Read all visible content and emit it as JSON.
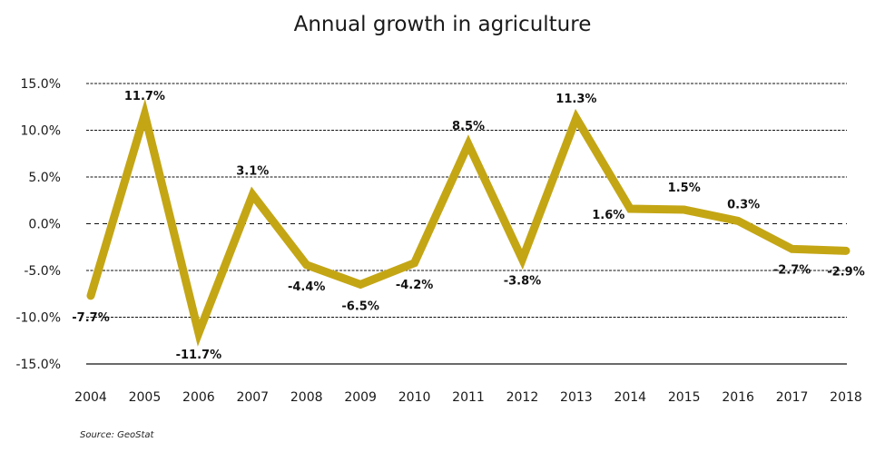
{
  "chart_data": {
    "type": "line",
    "title": "Annual growth in agriculture",
    "xlabel": "",
    "ylabel": "",
    "categories": [
      "2004",
      "2005",
      "2006",
      "2007",
      "2008",
      "2009",
      "2010",
      "2011",
      "2012",
      "2013",
      "2014",
      "2015",
      "2016",
      "2017",
      "2018"
    ],
    "series": [
      {
        "name": "Annual growth",
        "color": "#c4a615",
        "values": [
          -7.7,
          11.7,
          -11.7,
          3.1,
          -4.4,
          -6.5,
          -4.2,
          8.5,
          -3.8,
          11.3,
          1.6,
          1.5,
          0.3,
          -2.7,
          -2.9
        ],
        "labels": [
          "-7.7%",
          "11.7%",
          "-11.7%",
          "3.1%",
          "-4.4%",
          "-6.5%",
          "-4.2%",
          "8.5%",
          "-3.8%",
          "11.3%",
          "1.6%",
          "1.5%",
          "0.3%",
          "-2.7%",
          "-2.9%"
        ]
      }
    ],
    "ylim": [
      -15,
      15
    ],
    "yticks": [
      15,
      10,
      5,
      0,
      -5,
      -10,
      -15
    ],
    "ytick_labels": [
      "15.0%",
      "10.0%",
      "5.0%",
      "0.0%",
      "-5.0%",
      "-10.0%",
      "-15.0%"
    ],
    "grid": true,
    "legend": "none"
  },
  "source": "Source: GeoStat"
}
